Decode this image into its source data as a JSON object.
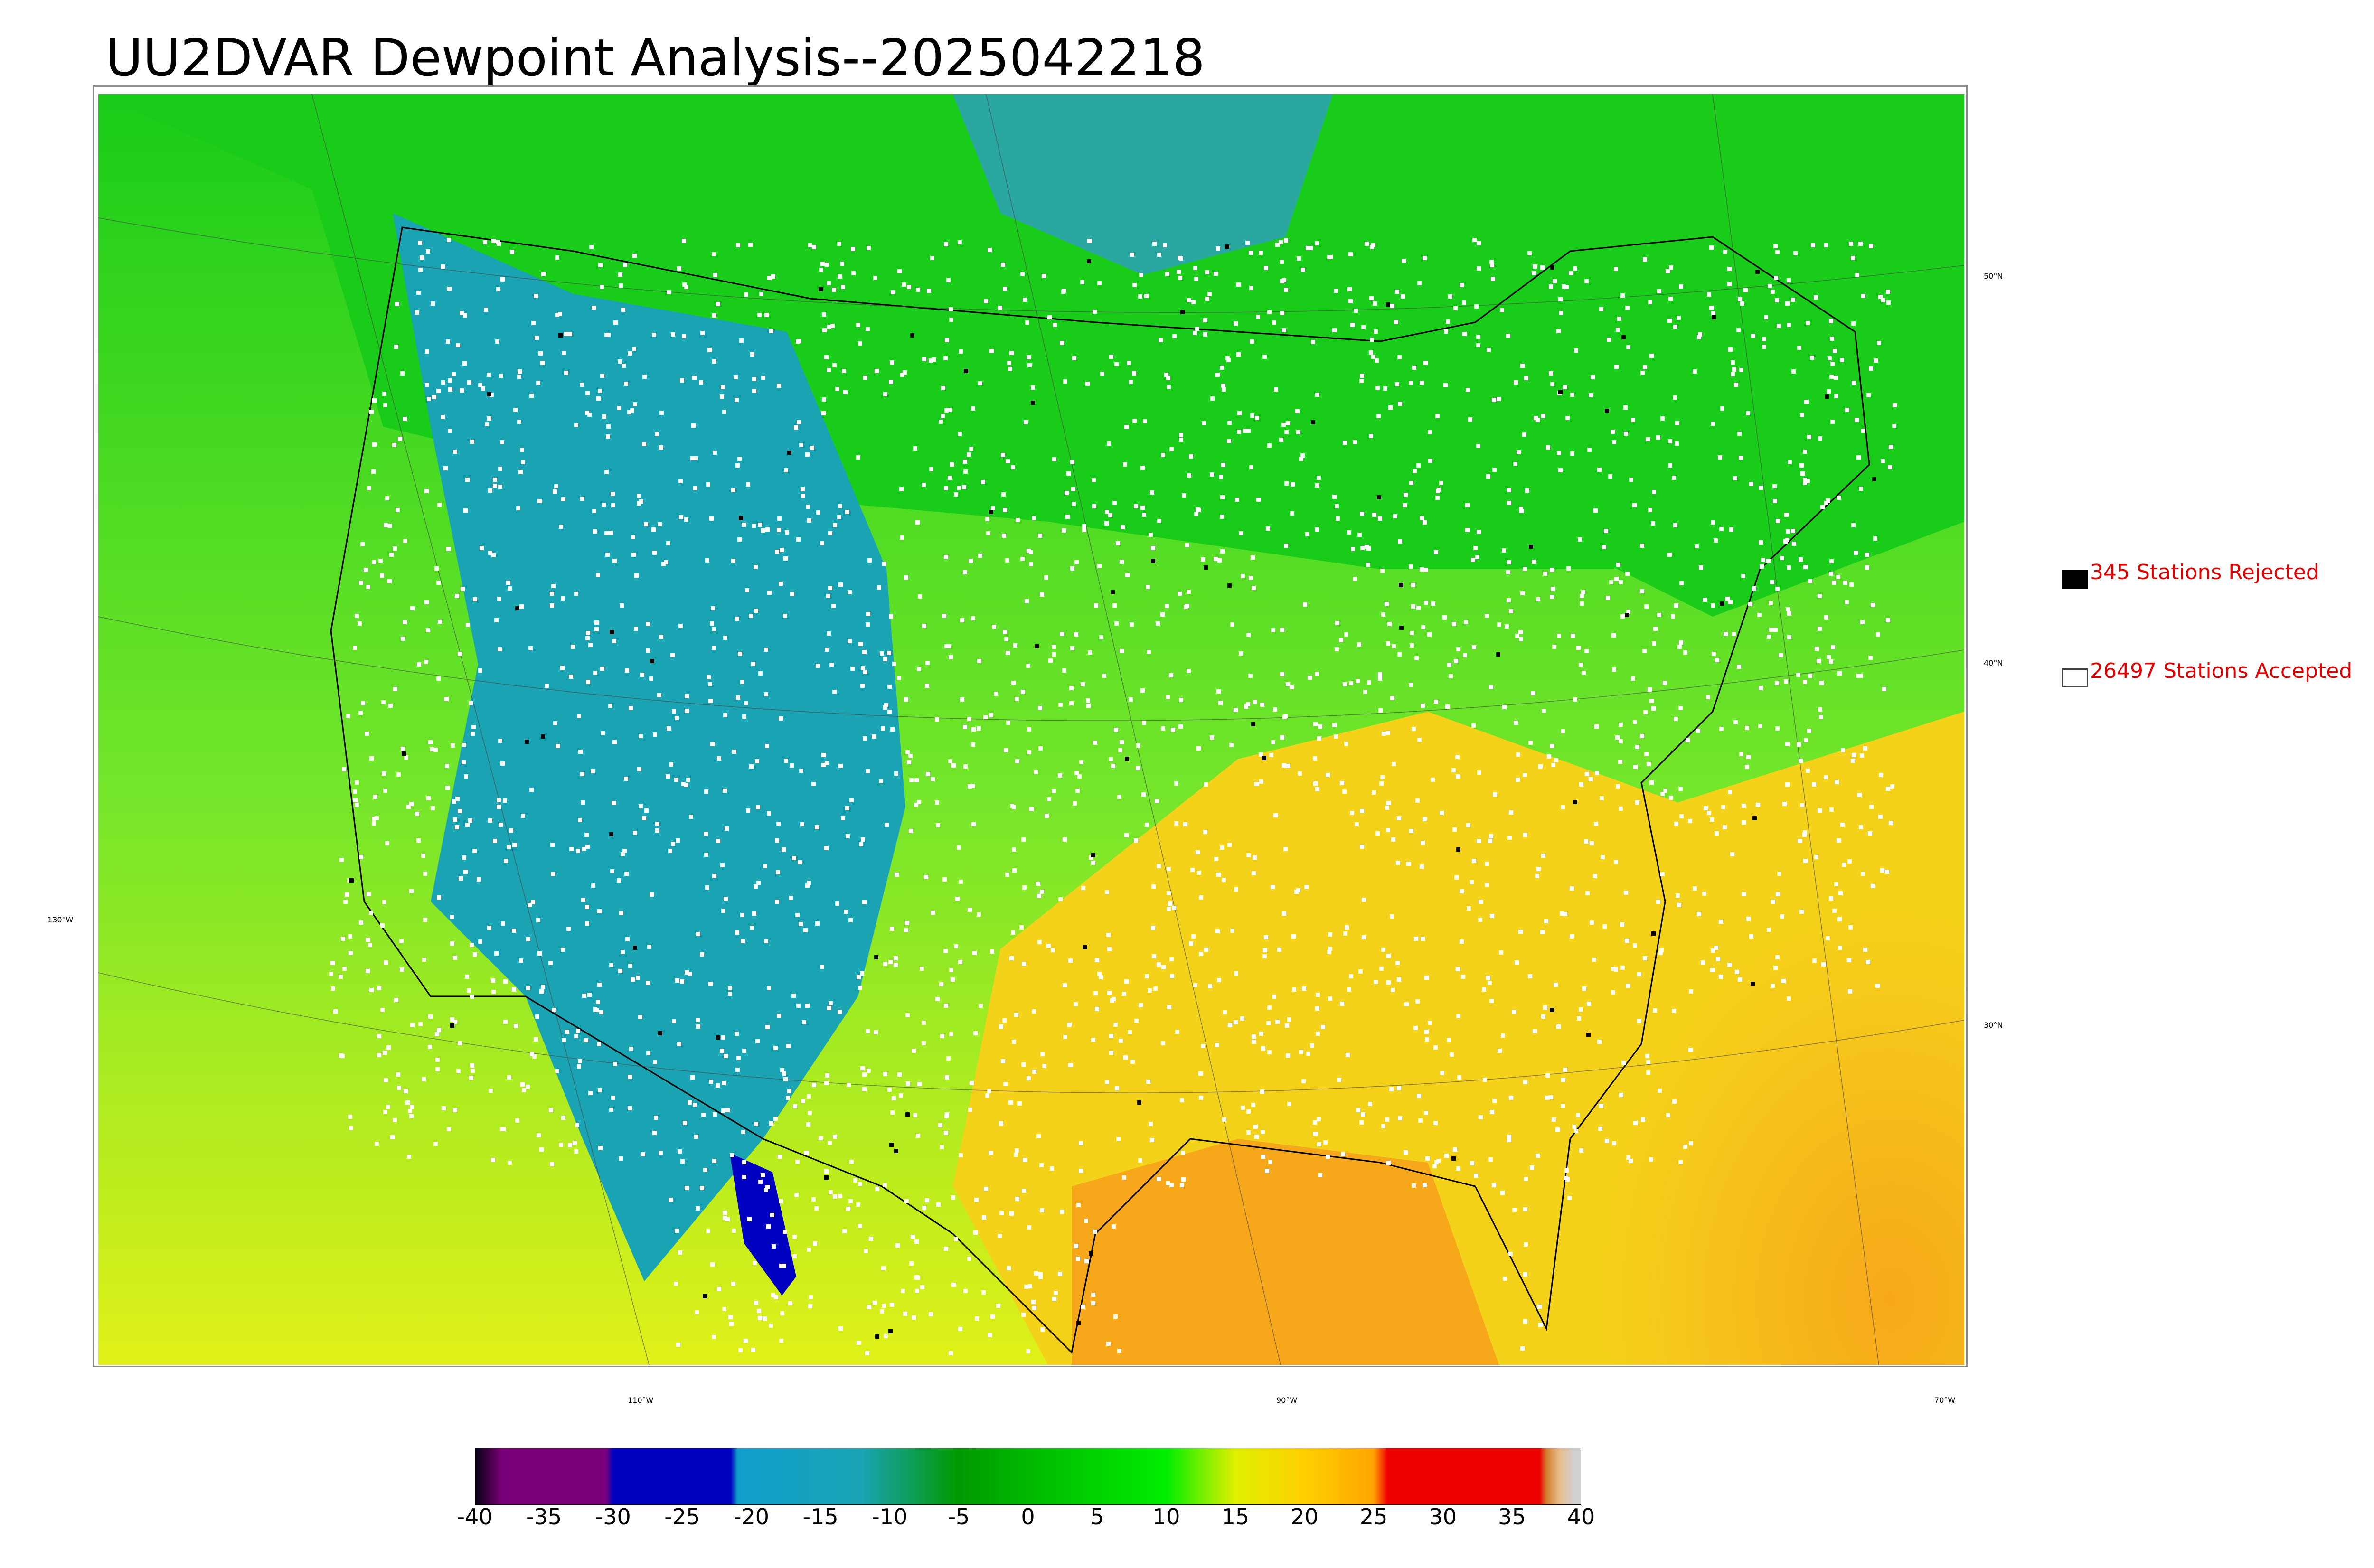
{
  "title": "UU2DVAR Dewpoint Analysis--2025042218",
  "map": {
    "gridlines": {
      "lon_labels": [
        "130°W",
        "110°W",
        "90°W",
        "70°W"
      ],
      "lat_labels": [
        "50°N",
        "40°N",
        "30°N"
      ]
    },
    "colors": {
      "ocean_west": "#8de63a",
      "ocean_pacific_south": "#d4f01e",
      "ocean_atlantic": "#f7c81a",
      "gulf": "#f7a81a",
      "canada": "#19cc19",
      "rockies": "#1aa3b3",
      "highs": "#0dbd3a",
      "south_east": "#f5d21a",
      "mexico_low": "#0000c0",
      "boundary": "#000000"
    },
    "stations": {
      "accepted_color": "#ffffff",
      "rejected_color": "#000000"
    }
  },
  "legend": {
    "rejected": {
      "label": "345 Stations Rejected",
      "count": 345,
      "swatch": "#000000"
    },
    "accepted": {
      "label": "26497 Stations Accepted",
      "count": 26497,
      "swatch": "#ffffff"
    }
  },
  "colorbar": {
    "min": -40,
    "max": 40,
    "ticks": [
      "-40",
      "-35",
      "-30",
      "-25",
      "-20",
      "-15",
      "-10",
      "-5",
      "0",
      "5",
      "10",
      "15",
      "20",
      "25",
      "30",
      "35",
      "40"
    ],
    "stops": [
      {
        "v": -40,
        "c": "#050010"
      },
      {
        "v": -38,
        "c": "#7a007a"
      },
      {
        "v": -30.5,
        "c": "#7a007a"
      },
      {
        "v": -30,
        "c": "#0000bf"
      },
      {
        "v": -21.5,
        "c": "#0000bf"
      },
      {
        "v": -21,
        "c": "#0f9fcc"
      },
      {
        "v": -12,
        "c": "#1aa3b3"
      },
      {
        "v": -5,
        "c": "#009900"
      },
      {
        "v": 0,
        "c": "#00b800"
      },
      {
        "v": 10,
        "c": "#00ee00"
      },
      {
        "v": 15,
        "c": "#e0f000"
      },
      {
        "v": 20,
        "c": "#ffd000"
      },
      {
        "v": 25,
        "c": "#ffa500"
      },
      {
        "v": 26,
        "c": "#ee0000"
      },
      {
        "v": 37,
        "c": "#ee0000"
      },
      {
        "v": 37.5,
        "c": "#d08030"
      },
      {
        "v": 38.5,
        "c": "#e8c090"
      },
      {
        "v": 39.5,
        "c": "#d0d0d0"
      }
    ]
  }
}
